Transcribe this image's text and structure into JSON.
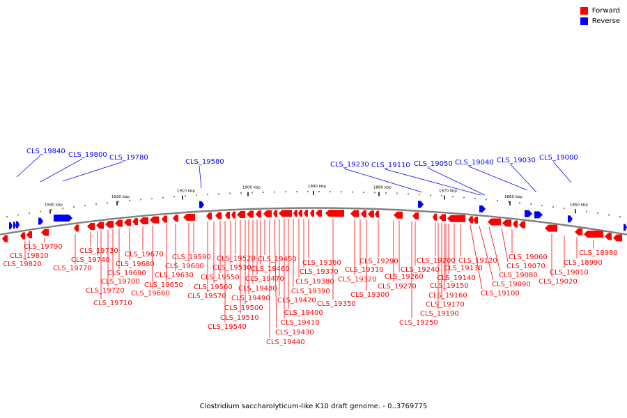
{
  "caption": "Clostridium saccharolyticum-like K10 draft genome. - 0..3769775",
  "legend": [
    {
      "label": "Forward",
      "color": "#ff0000"
    },
    {
      "label": "Reverse",
      "color": "#0000ff"
    }
  ],
  "colors": {
    "forward": "#ff0000",
    "reverse": "#0000ff",
    "backbone": "#808080"
  },
  "scale_labels": [
    "1930 kbp",
    "1920 kbp",
    "1910 kbp",
    "1900 kbp",
    "1890 kbp",
    "1880 kbp",
    "1870 kbp",
    "1860 kbp",
    "1850 kbp"
  ],
  "reverse_labels": [
    "CLS_19840",
    "CLS_19800",
    "CLS_19780",
    "CLS_19580",
    "CLS_19230",
    "CLS_19110",
    "CLS_19050",
    "CLS_19040",
    "CLS_19030",
    "CLS_19000"
  ],
  "forward_labels": [
    "CLS_19790",
    "CLS_19810",
    "CLS_19820",
    "CLS_19770",
    "CLS_19730",
    "CLS_19740",
    "CLS_19720",
    "CLS_19710",
    "CLS_19700",
    "CLS_19690",
    "CLS_19680",
    "CLS_19670",
    "CLS_19660",
    "CLS_19650",
    "CLS_19630",
    "CLS_19600",
    "CLS_19590",
    "CLS_19570",
    "CLS_19560",
    "CLS_19550",
    "CLS_19540",
    "CLS_19530",
    "CLS_19520",
    "CLS_19510",
    "CLS_19500",
    "CLS_19490",
    "CLS_19480",
    "CLS_19470",
    "CLS_19460",
    "CLS_19450",
    "CLS_19440",
    "CLS_19430",
    "CLS_19420",
    "CLS_19410",
    "CLS_19400",
    "CLS_19390",
    "CLS_19380",
    "CLS_19370",
    "CLS_19360",
    "CLS_19350",
    "CLS_19320",
    "CLS_19310",
    "CLS_19300",
    "CLS_19290",
    "CLS_19270",
    "CLS_19260",
    "CLS_19250",
    "CLS_19240",
    "CLS_19200",
    "CLS_19190",
    "CLS_19170",
    "CLS_19160",
    "CLS_19150",
    "CLS_19140",
    "CLS_19130",
    "CLS_19120",
    "CLS_19100",
    "CLS_19090",
    "CLS_19080",
    "CLS_19070",
    "CLS_19060",
    "CLS_19020",
    "CLS_19010",
    "CLS_18990",
    "CLS_18980"
  ]
}
